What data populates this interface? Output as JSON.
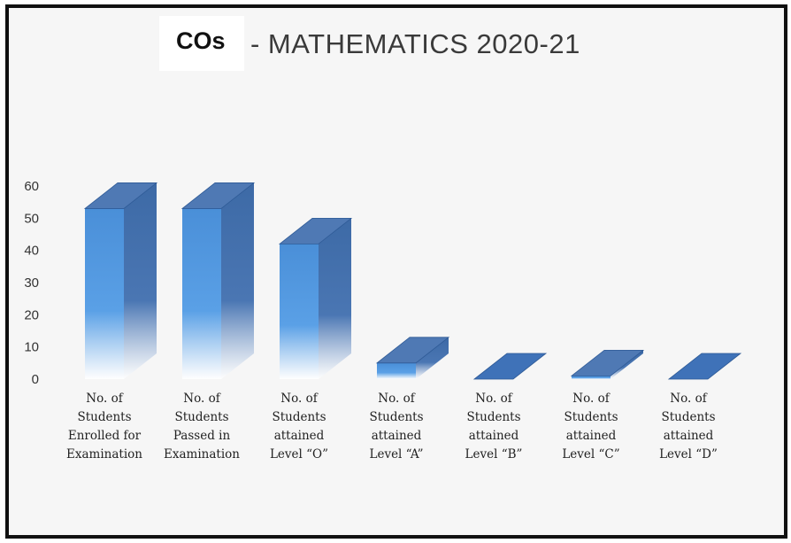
{
  "chart_data": {
    "type": "bar",
    "title_prefix": "COs",
    "title": "- MATHEMATICS 2020-21",
    "categories": [
      [
        "No. of",
        "Students",
        "Enrolled for",
        "Examination"
      ],
      [
        "No. of",
        "Students",
        "Passed in",
        "Examination"
      ],
      [
        "No. of",
        "Students",
        "attained",
        "Level “O”"
      ],
      [
        "No. of",
        "Students",
        "attained",
        "Level “A”"
      ],
      [
        "No. of",
        "Students",
        "attained",
        "Level “B”"
      ],
      [
        "No. of",
        "Students",
        "attained",
        "Level “C”"
      ],
      [
        "No. of",
        "Students",
        "attained",
        "Level “D”"
      ]
    ],
    "values": [
      53,
      53,
      42,
      5,
      0,
      1,
      0
    ],
    "yticks": [
      0,
      10,
      20,
      30,
      40,
      50,
      60
    ],
    "ylim": [
      0,
      60
    ],
    "style": "3d-column",
    "colors": {
      "bar_front": "#4a8fd8",
      "bar_side": "#3d6aa6",
      "bar_top": "#4f79b4",
      "axis_text": "#333333"
    }
  }
}
